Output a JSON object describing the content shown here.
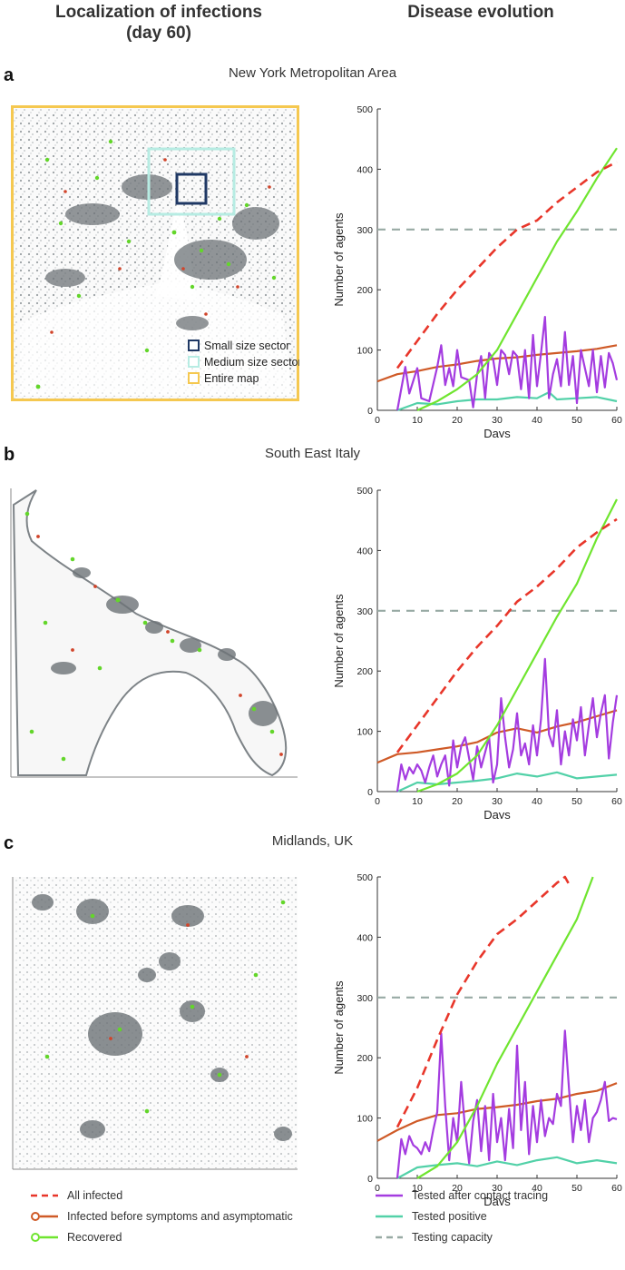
{
  "headers": {
    "left": "Localization of infections\n(day 60)",
    "right": "Disease evolution"
  },
  "colors": {
    "all_infected": "#e8362a",
    "infected_before": "#cf5a27",
    "recovered": "#6fe52f",
    "tested_tracing": "#a43ce0",
    "tested_positive": "#52d1a8",
    "testing_capacity": "#98aaa4",
    "map_frame": "#f5c850",
    "small_sector": "#1f3864",
    "medium_sector": "#b7ece3"
  },
  "panels": [
    {
      "letter": "a",
      "region": "New York Metropolitan Area",
      "map_legend": [
        "Small size sector",
        "Medium size sector",
        "Entire map"
      ]
    },
    {
      "letter": "b",
      "region": "South East Italy"
    },
    {
      "letter": "c",
      "region": "Midlands, UK"
    }
  ],
  "legend": {
    "all_infected": "All infected",
    "infected_before": "Infected before symptoms and asymptomatic",
    "recovered": "Recovered",
    "tested_tracing": "Tested after contact tracing",
    "tested_positive": "Tested positive",
    "testing_capacity": "Testing capacity"
  },
  "chart_data": [
    {
      "type": "line",
      "xlabel": "Days",
      "ylabel": "Number of agents",
      "xlim": [
        0,
        60
      ],
      "ylim": [
        0,
        500
      ],
      "xticks": [
        0,
        10,
        20,
        30,
        40,
        50,
        60
      ],
      "yticks": [
        0,
        100,
        200,
        300,
        400,
        500
      ],
      "series": [
        {
          "name": "All infected",
          "key": "all_infected",
          "style": "dashed",
          "x": [
            5,
            10,
            15,
            20,
            25,
            30,
            35,
            40,
            45,
            50,
            55,
            60
          ],
          "y": [
            70,
            115,
            160,
            200,
            235,
            270,
            300,
            315,
            345,
            370,
            395,
            412
          ]
        },
        {
          "name": "Infected before symptoms and asymptomatic",
          "key": "infected_before",
          "style": "solid",
          "x": [
            0,
            5,
            10,
            15,
            20,
            25,
            30,
            35,
            40,
            45,
            50,
            55,
            60
          ],
          "y": [
            48,
            60,
            65,
            72,
            76,
            82,
            86,
            88,
            92,
            95,
            98,
            102,
            108
          ]
        },
        {
          "name": "Recovered",
          "key": "recovered",
          "style": "solid",
          "x": [
            10,
            15,
            20,
            25,
            30,
            35,
            40,
            45,
            50,
            55,
            60
          ],
          "y": [
            0,
            15,
            35,
            60,
            100,
            160,
            220,
            280,
            330,
            385,
            435
          ]
        },
        {
          "name": "Tested after contact tracing",
          "key": "tested_tracing",
          "style": "solid",
          "x": [
            5,
            7,
            8,
            10,
            11,
            13,
            15,
            16,
            17,
            18,
            19,
            20,
            21,
            23,
            24,
            25,
            26,
            27,
            28,
            29,
            30,
            31,
            32,
            33,
            34,
            35,
            36,
            37,
            38,
            39,
            40,
            41,
            42,
            43,
            44,
            45,
            46,
            47,
            48,
            49,
            50,
            51,
            52,
            53,
            54,
            55,
            56,
            57,
            58,
            59,
            60
          ],
          "y": [
            0,
            72,
            28,
            70,
            20,
            15,
            72,
            108,
            42,
            70,
            40,
            100,
            55,
            50,
            5,
            60,
            90,
            20,
            95,
            85,
            42,
            100,
            92,
            60,
            98,
            90,
            35,
            100,
            20,
            125,
            40,
            95,
            155,
            20,
            60,
            85,
            40,
            130,
            42,
            90,
            12,
            100,
            70,
            40,
            100,
            30,
            90,
            38,
            95,
            78,
            50
          ]
        },
        {
          "name": "Tested positive",
          "key": "tested_positive",
          "style": "solid",
          "x": [
            5,
            10,
            15,
            20,
            25,
            30,
            35,
            40,
            43,
            45,
            50,
            55,
            60
          ],
          "y": [
            0,
            12,
            10,
            15,
            18,
            18,
            22,
            20,
            30,
            18,
            20,
            22,
            15
          ]
        },
        {
          "name": "Testing capacity",
          "key": "testing_capacity",
          "style": "dashed",
          "x": [
            0,
            60
          ],
          "y": [
            300,
            300
          ]
        }
      ]
    },
    {
      "type": "line",
      "xlabel": "Days",
      "ylabel": "Number of agents",
      "xlim": [
        0,
        60
      ],
      "ylim": [
        0,
        500
      ],
      "xticks": [
        0,
        10,
        20,
        30,
        40,
        50,
        60
      ],
      "yticks": [
        0,
        100,
        200,
        300,
        400,
        500
      ],
      "series": [
        {
          "name": "All infected",
          "key": "all_infected",
          "style": "dashed",
          "x": [
            5,
            10,
            15,
            20,
            25,
            30,
            35,
            40,
            45,
            50,
            55,
            60
          ],
          "y": [
            65,
            110,
            155,
            200,
            240,
            275,
            315,
            340,
            370,
            405,
            430,
            452
          ]
        },
        {
          "name": "Infected before symptoms and asymptomatic",
          "key": "infected_before",
          "style": "solid",
          "x": [
            0,
            5,
            10,
            15,
            20,
            25,
            30,
            35,
            40,
            45,
            50,
            55,
            60
          ],
          "y": [
            48,
            62,
            65,
            70,
            75,
            82,
            98,
            105,
            98,
            108,
            115,
            125,
            135
          ]
        },
        {
          "name": "Recovered",
          "key": "recovered",
          "style": "solid",
          "x": [
            10,
            15,
            20,
            25,
            30,
            35,
            40,
            45,
            50,
            55,
            60
          ],
          "y": [
            0,
            12,
            30,
            60,
            110,
            170,
            230,
            290,
            345,
            420,
            485
          ]
        },
        {
          "name": "Tested after contact tracing",
          "key": "tested_tracing",
          "style": "solid",
          "x": [
            5,
            6,
            7,
            8,
            9,
            10,
            11,
            12,
            13,
            14,
            15,
            16,
            17,
            18,
            19,
            20,
            21,
            22,
            23,
            24,
            25,
            26,
            27,
            28,
            29,
            30,
            31,
            32,
            33,
            34,
            35,
            36,
            37,
            38,
            39,
            40,
            41,
            42,
            43,
            44,
            45,
            46,
            47,
            48,
            49,
            50,
            51,
            52,
            53,
            54,
            55,
            56,
            57,
            58,
            59,
            60
          ],
          "y": [
            0,
            45,
            20,
            40,
            30,
            45,
            35,
            15,
            40,
            60,
            25,
            45,
            60,
            10,
            85,
            40,
            75,
            90,
            55,
            20,
            75,
            40,
            65,
            90,
            15,
            45,
            155,
            90,
            40,
            70,
            130,
            60,
            80,
            45,
            110,
            60,
            120,
            220,
            95,
            75,
            135,
            45,
            100,
            60,
            120,
            85,
            140,
            60,
            110,
            155,
            90,
            130,
            160,
            55,
            115,
            160
          ]
        },
        {
          "name": "Tested positive",
          "key": "tested_positive",
          "style": "solid",
          "x": [
            5,
            10,
            15,
            20,
            25,
            30,
            35,
            40,
            45,
            50,
            55,
            60
          ],
          "y": [
            0,
            15,
            12,
            15,
            18,
            22,
            30,
            25,
            32,
            22,
            25,
            28
          ]
        },
        {
          "name": "Testing capacity",
          "key": "testing_capacity",
          "style": "dashed",
          "x": [
            0,
            60
          ],
          "y": [
            300,
            300
          ]
        }
      ]
    },
    {
      "type": "line",
      "xlabel": "Days",
      "ylabel": "Number of agents",
      "xlim": [
        0,
        60
      ],
      "ylim": [
        0,
        500
      ],
      "xticks": [
        0,
        10,
        20,
        30,
        40,
        50,
        60
      ],
      "yticks": [
        0,
        100,
        200,
        300,
        400,
        500
      ],
      "series": [
        {
          "name": "All infected",
          "key": "all_infected",
          "style": "dashed",
          "x": [
            5,
            10,
            15,
            20,
            25,
            30,
            35,
            40,
            45,
            47,
            48,
            49
          ],
          "y": [
            85,
            150,
            230,
            305,
            360,
            405,
            430,
            460,
            490,
            500,
            488,
            490
          ]
        },
        {
          "name": "Infected before symptoms and asymptomatic",
          "key": "infected_before",
          "style": "solid",
          "x": [
            0,
            5,
            10,
            15,
            20,
            25,
            30,
            35,
            40,
            45,
            50,
            55,
            60
          ],
          "y": [
            62,
            80,
            95,
            105,
            108,
            115,
            118,
            122,
            128,
            132,
            140,
            145,
            158
          ]
        },
        {
          "name": "Recovered",
          "key": "recovered",
          "style": "solid",
          "x": [
            10,
            15,
            20,
            25,
            30,
            35,
            40,
            45,
            50,
            54
          ],
          "y": [
            0,
            20,
            60,
            120,
            190,
            250,
            310,
            370,
            430,
            500
          ]
        },
        {
          "name": "Tested after contact tracing",
          "key": "tested_tracing",
          "style": "solid",
          "x": [
            5,
            6,
            7,
            8,
            9,
            10,
            11,
            12,
            13,
            14,
            15,
            16,
            17,
            18,
            19,
            20,
            21,
            22,
            23,
            24,
            25,
            26,
            27,
            28,
            29,
            30,
            31,
            32,
            33,
            34,
            35,
            36,
            37,
            38,
            39,
            40,
            41,
            42,
            43,
            44,
            45,
            46,
            47,
            48,
            49,
            50,
            51,
            52,
            53,
            54,
            55,
            56,
            57,
            58,
            59,
            60
          ],
          "y": [
            0,
            65,
            40,
            70,
            55,
            50,
            40,
            60,
            45,
            80,
            110,
            240,
            120,
            30,
            100,
            60,
            160,
            80,
            25,
            95,
            130,
            45,
            120,
            30,
            140,
            60,
            100,
            30,
            115,
            50,
            220,
            80,
            160,
            40,
            120,
            60,
            130,
            70,
            100,
            90,
            140,
            120,
            245,
            150,
            60,
            120,
            80,
            130,
            60,
            100,
            110,
            130,
            160,
            95,
            100,
            98
          ]
        },
        {
          "name": "Tested positive",
          "key": "tested_positive",
          "style": "solid",
          "x": [
            5,
            10,
            15,
            20,
            25,
            30,
            35,
            40,
            45,
            50,
            55,
            60
          ],
          "y": [
            0,
            18,
            22,
            25,
            20,
            28,
            22,
            30,
            35,
            25,
            30,
            25
          ]
        },
        {
          "name": "Testing capacity",
          "key": "testing_capacity",
          "style": "dashed",
          "x": [
            0,
            60
          ],
          "y": [
            300,
            300
          ]
        }
      ]
    }
  ]
}
